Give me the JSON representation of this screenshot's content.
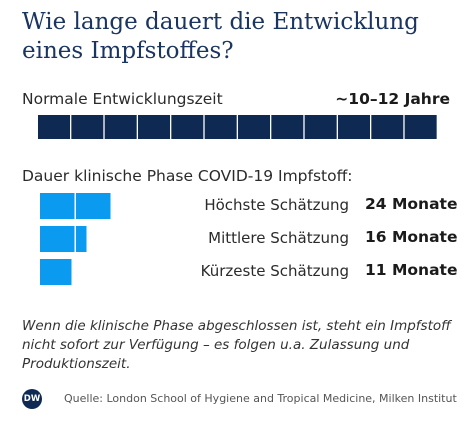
{
  "title": "Wie lange dauert die Entwicklung eines Impfstoffes?",
  "normal": {
    "label": "Normale Entwicklungszeit",
    "value_label": "~10–12 Jahre"
  },
  "clinical_label": "Dauer klinische Phase COVID-19 Impfstoff:",
  "note": "Wenn die klinische Phase abgeschlossen ist, steht ein Impfstoff nicht sofort zur Verfügung – es folgen u.a. Zulassung und Produktionszeit.",
  "source": "Quelle: London School of Hygiene and Tropical Medicine, Milken Institut",
  "logo_text": "DW",
  "colors": {
    "title": "#1b3561",
    "normal_bar": "#0f2a52",
    "estimate_bar": "#0a9bf0",
    "logo": "#0f2a52"
  },
  "chart_data": {
    "type": "bar",
    "unit_note": "each block represents one year",
    "normal": {
      "label": "Normale Entwicklungszeit",
      "years": 12,
      "value_label": "~10–12 Jahre"
    },
    "categories": [
      "Höchste Schätzung",
      "Mittlere Schätzung",
      "Kürzeste Schätzung"
    ],
    "values": [
      24,
      16,
      11
    ],
    "value_labels": [
      "24 Monate",
      "16 Monate",
      "11 Monate"
    ],
    "value_unit": "Monate"
  }
}
